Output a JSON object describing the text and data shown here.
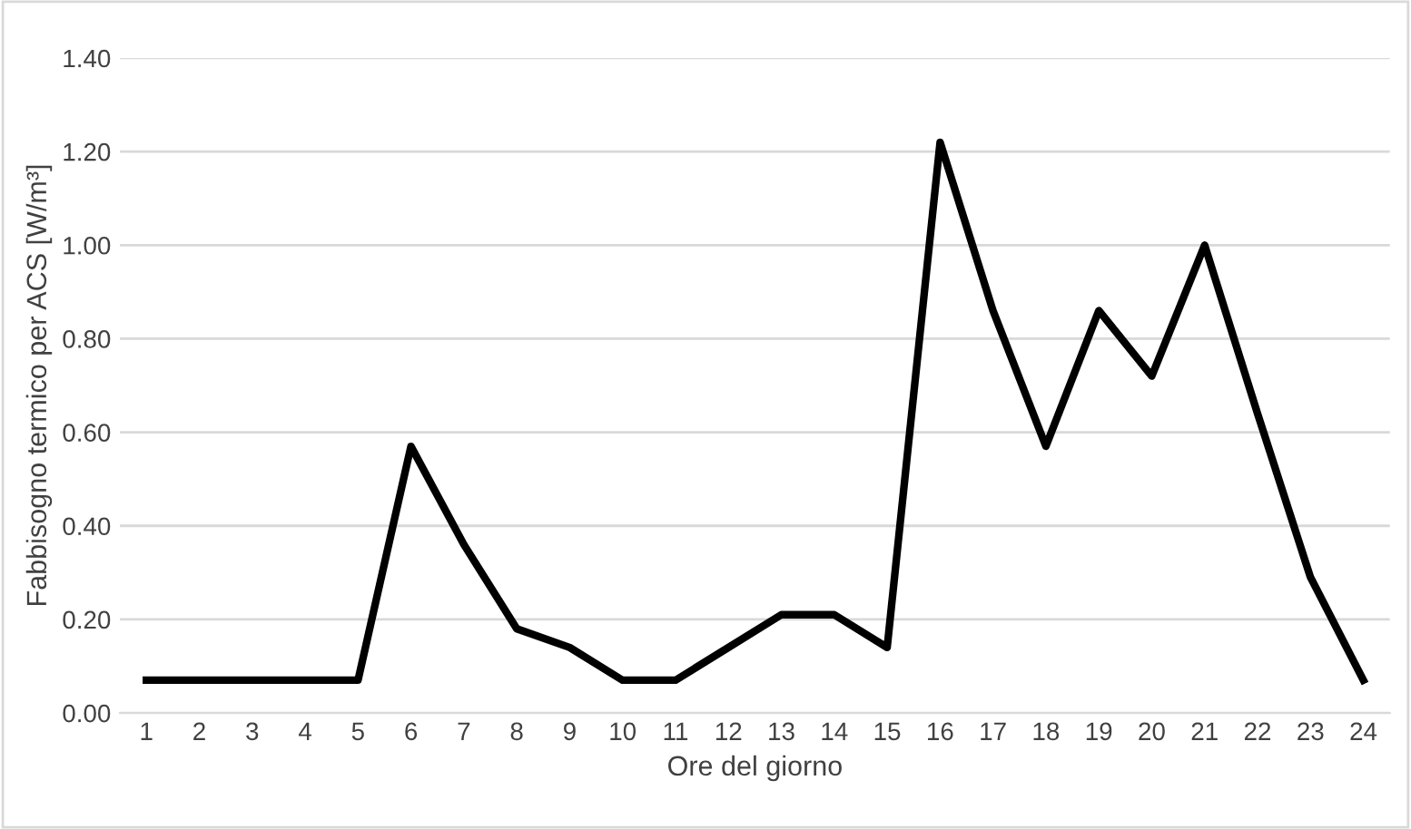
{
  "chart_data": {
    "type": "line",
    "xlabel": "Ore del giorno",
    "ylabel": "Fabbisogno termico per ACS [W/m³]",
    "categories": [
      "1",
      "2",
      "3",
      "4",
      "5",
      "6",
      "7",
      "8",
      "9",
      "10",
      "11",
      "12",
      "13",
      "14",
      "15",
      "16",
      "17",
      "18",
      "19",
      "20",
      "21",
      "22",
      "23",
      "24"
    ],
    "series": [
      {
        "color": "#000000",
        "values": [
          0.07,
          0.07,
          0.07,
          0.07,
          0.07,
          0.57,
          0.36,
          0.18,
          0.14,
          0.07,
          0.07,
          0.14,
          0.21,
          0.21,
          0.14,
          1.22,
          0.86,
          0.57,
          0.86,
          0.72,
          1.0,
          0.64,
          0.29,
          0.07
        ]
      }
    ],
    "ylim": [
      0,
      1.4
    ],
    "yticks": [
      {
        "value": 0,
        "label": "0.00"
      },
      {
        "value": 0.2,
        "label": "0.20"
      },
      {
        "value": 0.4,
        "label": "0.40"
      },
      {
        "value": 0.6,
        "label": "0.60"
      },
      {
        "value": 0.8,
        "label": "0.80"
      },
      {
        "value": 1.0,
        "label": "1.00"
      },
      {
        "value": 1.2,
        "label": "1.20"
      },
      {
        "value": 1.4,
        "label": "1.40"
      }
    ],
    "grid": "y",
    "legend": false,
    "marker": "none",
    "line_style": "solid"
  }
}
